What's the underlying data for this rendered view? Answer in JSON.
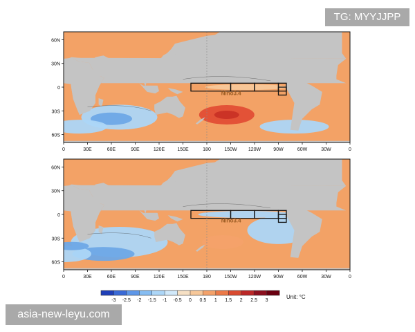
{
  "watermarks": {
    "top_right": "TG: MYYJJPP",
    "bottom_left": "asia-new-leyu.com"
  },
  "maps": [
    {
      "id": "top",
      "region_label": "Nino3.4",
      "lat_labels": [
        "60N",
        "30N",
        "0",
        "30S",
        "60S"
      ],
      "lon_labels": [
        "0",
        "30E",
        "60E",
        "90E",
        "120E",
        "150E",
        "180",
        "150W",
        "120W",
        "90W",
        "60W",
        "30W",
        "0"
      ]
    },
    {
      "id": "bottom",
      "region_label": "Nino3.4",
      "lat_labels": [
        "60N",
        "30N",
        "0",
        "30S",
        "60S"
      ],
      "lon_labels": [
        "0",
        "30E",
        "60E",
        "90E",
        "120E",
        "150E",
        "180",
        "150W",
        "120W",
        "90W",
        "60W",
        "30W",
        "0"
      ]
    }
  ],
  "colorbar": {
    "ticks": [
      "-3",
      "-2.5",
      "-2",
      "-1.5",
      "-1",
      "-0.5",
      "0",
      "0.5",
      "1",
      "1.5",
      "2",
      "2.5",
      "3"
    ],
    "unit_label": "Unit: °C",
    "colors": [
      "#1f3fb8",
      "#3a6ad6",
      "#5e97e8",
      "#86bdf2",
      "#acd6f7",
      "#d1e9fa",
      "#f6e0c4",
      "#f7c89a",
      "#f4a26a",
      "#ec7a48",
      "#d94a30",
      "#bb2727",
      "#8c0f1e",
      "#6a0010"
    ]
  },
  "palette": {
    "land": "#c4c4c4",
    "ocean_warm": "#f3a266",
    "ocean_hot": "#e14e35",
    "ocean_cool": "#acd6f7",
    "ocean_cold": "#6ea8e6",
    "neutral": "#f6e0c4"
  }
}
